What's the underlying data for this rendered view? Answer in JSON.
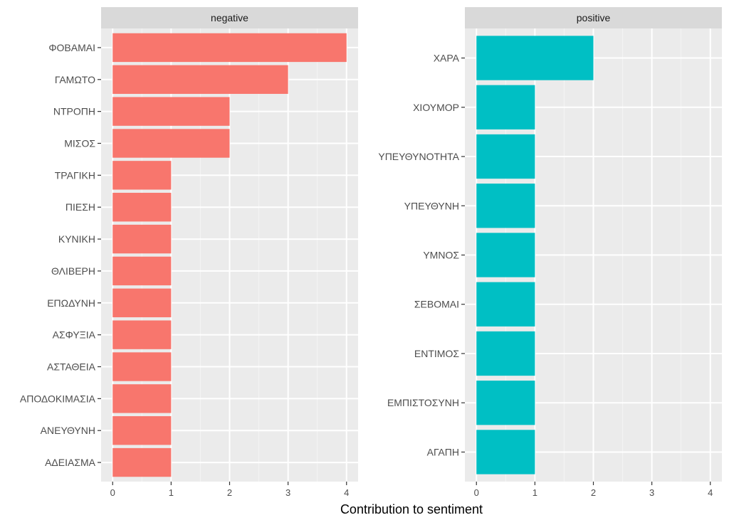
{
  "chart_data": {
    "type": "bar",
    "orientation": "horizontal",
    "xlabel": "Contribution to sentiment",
    "xlim": [
      0,
      4
    ],
    "x_ticks": [
      0,
      1,
      2,
      3,
      4
    ],
    "grid": true,
    "panels": [
      {
        "name": "negative",
        "color": "#F8766D",
        "categories": [
          "ΦΟΒΑΜΑΙ",
          "ΓΑΜΩΤΟ",
          "ΝΤΡΟΠΗ",
          "ΜΙΣΟΣ",
          "ΤΡΑΓΙΚΗ",
          "ΠΙΕΣΗ",
          "ΚΥΝΙΚΗ",
          "ΘΛΙΒΕΡΗ",
          "ΕΠΩΔΥΝΗ",
          "ΑΣΦΥΞΙΑ",
          "ΑΣΤΑΘΕΙΑ",
          "ΑΠΟΔΟΚΙΜΑΣΙΑ",
          "ΑΝΕΥΘΥΝΗ",
          "ΑΔΕΙΑΣΜΑ"
        ],
        "values": [
          4,
          3,
          2,
          2,
          1,
          1,
          1,
          1,
          1,
          1,
          1,
          1,
          1,
          1
        ]
      },
      {
        "name": "positive",
        "color": "#00BFC4",
        "categories": [
          "ΧΑΡΑ",
          "ΧΙΟΥΜΟΡ",
          "ΥΠΕΥΘΥΝΟΤΗΤΑ",
          "ΥΠΕΥΘΥΝΗ",
          "ΥΜΝΟΣ",
          "ΣΕΒΟΜΑΙ",
          "ΕΝΤΙΜΟΣ",
          "ΕΜΠΙΣΤΟΣΥΝΗ",
          "ΑΓΑΠΗ"
        ],
        "values": [
          2,
          1,
          1,
          1,
          1,
          1,
          1,
          1,
          1
        ]
      }
    ],
    "colors": {
      "panel_background": "#EBEBEB",
      "strip_background": "#D9D9D9",
      "grid_major": "#FFFFFF",
      "text": "#4D4D4D",
      "title_text": "#000000"
    }
  }
}
